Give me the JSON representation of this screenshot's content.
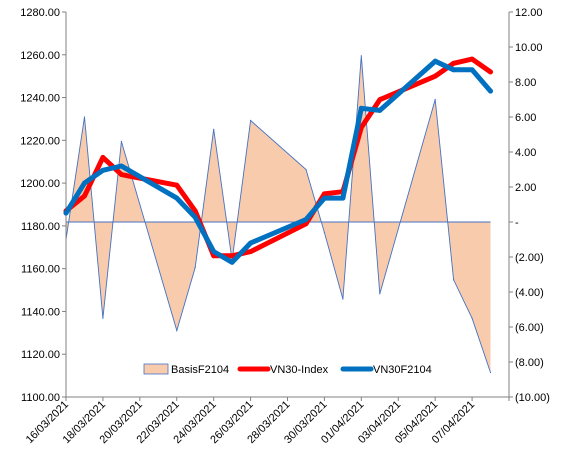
{
  "chart_data": {
    "type": "line",
    "title": "",
    "xlabel": "",
    "ylabel": "",
    "x_tick_labels": [
      "16/03/2021",
      "18/03/2021",
      "20/03/2021",
      "22/03/2021",
      "24/03/2021",
      "26/03/2021",
      "28/03/2021",
      "30/03/2021",
      "01/04/2021",
      "03/04/2021",
      "05/04/2021",
      "07/04/2021"
    ],
    "y_left_ticks": [
      "1100.00",
      "1120.00",
      "1140.00",
      "1160.00",
      "1180.00",
      "1200.00",
      "1220.00",
      "1240.00",
      "1260.00",
      "1280.00"
    ],
    "y_right_ticks": [
      "(10.00)",
      "(8.00)",
      "(6.00)",
      "(4.00)",
      "(2.00)",
      "-",
      "2.00",
      "4.00",
      "6.00",
      "8.00",
      "10.00",
      "12.00"
    ],
    "ylim_left": [
      1100,
      1280
    ],
    "ylim_right": [
      -10,
      12
    ],
    "x_start": "2021-03-16",
    "x_end": "2021-04-09",
    "grid": false,
    "legend_position": "bottom",
    "series": [
      {
        "name": "BasisF2104",
        "axis": "right",
        "style": "area",
        "color": "#f8cbad",
        "edge_color": "#4472c4",
        "x": [
          "2021-03-16",
          "2021-03-17",
          "2021-03-18",
          "2021-03-19",
          "2021-03-22",
          "2021-03-23",
          "2021-03-24",
          "2021-03-25",
          "2021-03-26",
          "2021-03-29",
          "2021-03-30",
          "2021-03-31",
          "2021-04-01",
          "2021-04-02",
          "2021-04-05",
          "2021-04-06",
          "2021-04-07",
          "2021-04-08"
        ],
        "values": [
          -1.0,
          6.0,
          -5.5,
          4.6,
          -6.2,
          -2.6,
          5.3,
          -2.2,
          5.8,
          3.0,
          -0.6,
          -4.4,
          9.5,
          -4.1,
          7.0,
          -3.3,
          -5.5,
          -8.6
        ]
      },
      {
        "name": "VN30-Index",
        "axis": "left",
        "style": "line",
        "color": "#ff0000",
        "x": [
          "2021-03-16",
          "2021-03-17",
          "2021-03-18",
          "2021-03-19",
          "2021-03-22",
          "2021-03-23",
          "2021-03-24",
          "2021-03-25",
          "2021-03-26",
          "2021-03-29",
          "2021-03-30",
          "2021-03-31",
          "2021-04-01",
          "2021-04-02",
          "2021-04-05",
          "2021-04-06",
          "2021-04-07",
          "2021-04-08"
        ],
        "values": [
          1187,
          1194,
          1212,
          1204,
          1199,
          1187,
          1166,
          1166,
          1168,
          1181,
          1195,
          1196,
          1226,
          1239,
          1250,
          1256,
          1258,
          1252
        ]
      },
      {
        "name": "VN30F2104",
        "axis": "left",
        "style": "line",
        "color": "#0070c0",
        "x": [
          "2021-03-16",
          "2021-03-17",
          "2021-03-18",
          "2021-03-19",
          "2021-03-22",
          "2021-03-23",
          "2021-03-24",
          "2021-03-25",
          "2021-03-26",
          "2021-03-29",
          "2021-03-30",
          "2021-03-31",
          "2021-04-01",
          "2021-04-02",
          "2021-04-05",
          "2021-04-06",
          "2021-04-07",
          "2021-04-08"
        ],
        "values": [
          1186,
          1200,
          1206,
          1208,
          1193,
          1184,
          1168,
          1163,
          1172,
          1183,
          1193,
          1193,
          1235,
          1234,
          1257,
          1253,
          1253,
          1243
        ]
      }
    ]
  }
}
